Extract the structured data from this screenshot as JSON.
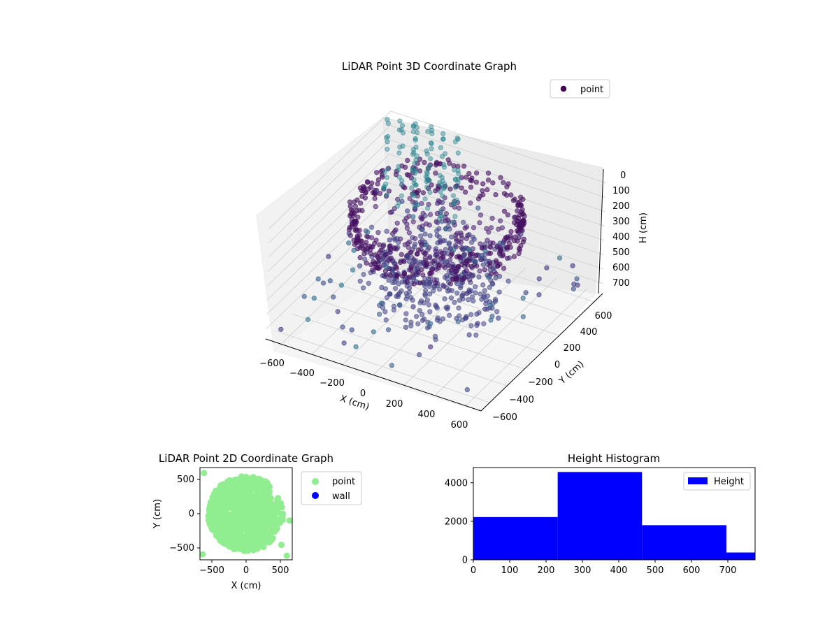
{
  "figure": {
    "background": "#ffffff"
  },
  "chart_data": [
    {
      "type": "scatter3d",
      "title": "LiDAR Point 3D Coordinate Graph",
      "xlabel": "X (cm)",
      "ylabel": "Y (cm)",
      "zlabel": "H (cm)",
      "xticks": [
        "−600",
        "−400",
        "−200",
        "0",
        "200",
        "400",
        "600"
      ],
      "yticks": [
        "−600",
        "−400",
        "−200",
        "0",
        "200",
        "400",
        "600"
      ],
      "zticks": [
        "0",
        "100",
        "200",
        "300",
        "400",
        "500",
        "600",
        "700"
      ],
      "xlim": [
        -700,
        700
      ],
      "ylim": [
        -700,
        700
      ],
      "zlim": [
        0,
        770
      ],
      "z_axis_inverted": true,
      "legend": [
        {
          "name": "point",
          "color": "#440154"
        }
      ],
      "legend_loc": "upper right",
      "colormap": "viridis",
      "grid": true,
      "series": [
        {
          "name": "point",
          "note_approx": true,
          "shape": "dense ring of points at heights ~0–250 plus central mass down to ~700, sparse outliers"
        }
      ]
    },
    {
      "type": "scatter",
      "title": "LiDAR Point 2D Coordinate Graph",
      "xlabel": "X (cm)",
      "ylabel": "Y (cm)",
      "xticks": [
        "−500",
        "0",
        "500"
      ],
      "yticks": [
        "−500",
        "0",
        "500"
      ],
      "xlim": [
        -680,
        680
      ],
      "ylim": [
        -680,
        680
      ],
      "legend": [
        {
          "name": "point",
          "color": "#90ee90"
        },
        {
          "name": "wall",
          "color": "#0000ff"
        }
      ],
      "legend_loc": "outside upper right"
    },
    {
      "type": "bar",
      "title": "Height Histogram",
      "bins": [
        {
          "x0": 0,
          "x1": 232,
          "count": 2220
        },
        {
          "x0": 232,
          "x1": 464,
          "count": 4560
        },
        {
          "x0": 464,
          "x1": 696,
          "count": 1800
        },
        {
          "x0": 696,
          "x1": 775,
          "count": 380
        }
      ],
      "xticks": [
        "0",
        "100",
        "200",
        "300",
        "400",
        "500",
        "600",
        "700"
      ],
      "yticks": [
        "0",
        "2000",
        "4000"
      ],
      "xlim": [
        0,
        775
      ],
      "ylim": [
        0,
        4790
      ],
      "color": "#0000ff",
      "legend": [
        {
          "name": "Height",
          "color": "#0000ff"
        }
      ],
      "legend_loc": "upper right"
    }
  ]
}
